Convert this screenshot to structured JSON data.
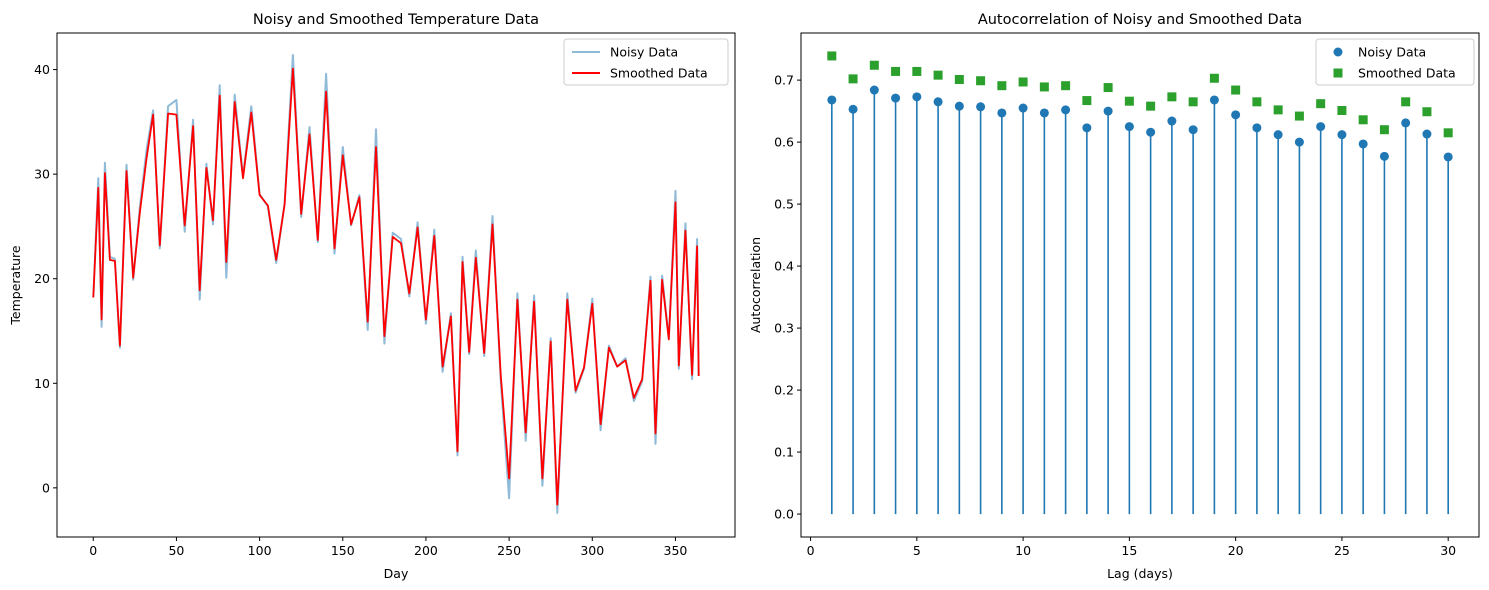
{
  "chart_data": [
    {
      "type": "line",
      "title": "Noisy and Smoothed Temperature Data",
      "xlabel": "Day",
      "ylabel": "Temperature",
      "xlim": [
        -21.8,
        385.8
      ],
      "ylim": [
        -4.7,
        43.5
      ],
      "xticks": [
        0,
        50,
        100,
        150,
        200,
        250,
        300,
        350
      ],
      "yticks": [
        0,
        10,
        20,
        30,
        40
      ],
      "legend_position": "upper right",
      "grid": false,
      "series": [
        {
          "name": "Noisy Data",
          "color": "#1f77b4",
          "alpha": 0.5,
          "x": [
            0,
            3,
            5,
            7,
            10,
            13,
            16,
            20,
            24,
            28,
            32,
            36,
            40,
            45,
            50,
            55,
            60,
            64,
            68,
            72,
            76,
            80,
            85,
            90,
            95,
            100,
            105,
            110,
            115,
            120,
            125,
            130,
            135,
            140,
            145,
            150,
            155,
            160,
            165,
            170,
            175,
            180,
            185,
            190,
            195,
            200,
            205,
            210,
            215,
            219,
            222,
            226,
            230,
            235,
            240,
            245,
            250,
            255,
            260,
            265,
            270,
            275,
            279,
            285,
            290,
            295,
            300,
            305,
            310,
            315,
            320,
            325,
            330,
            335,
            338,
            342,
            346,
            350,
            352,
            356,
            360,
            363,
            364
          ],
          "values": [
            18.2,
            29.6,
            15.4,
            31.1,
            22.1,
            21.9,
            13.4,
            30.9,
            19.9,
            26.8,
            32.3,
            36.1,
            22.9,
            36.5,
            37.1,
            24.5,
            35.2,
            18.0,
            31.0,
            25.2,
            38.5,
            20.1,
            37.6,
            29.8,
            36.5,
            28.1,
            26.9,
            21.5,
            27.2,
            41.4,
            25.9,
            34.5,
            23.5,
            39.6,
            22.4,
            32.6,
            25.1,
            28.0,
            15.1,
            34.3,
            13.8,
            24.4,
            23.8,
            18.3,
            25.4,
            15.7,
            24.7,
            11.1,
            16.7,
            3.1,
            22.1,
            12.8,
            22.7,
            12.6,
            26.0,
            10.1,
            -1.0,
            18.6,
            4.5,
            18.4,
            0.2,
            14.3,
            -2.4,
            18.6,
            9.1,
            11.4,
            18.1,
            5.5,
            13.6,
            11.6,
            12.4,
            8.3,
            10.2,
            20.2,
            4.2,
            20.3,
            14.3,
            28.4,
            11.4,
            25.3,
            10.4,
            23.8,
            10.7
          ]
        },
        {
          "name": "Smoothed Data",
          "color": "#ff0000",
          "x": [
            0,
            3,
            5,
            7,
            10,
            13,
            16,
            20,
            24,
            28,
            32,
            36,
            40,
            45,
            50,
            55,
            60,
            64,
            68,
            72,
            76,
            80,
            85,
            90,
            95,
            100,
            105,
            110,
            115,
            120,
            125,
            130,
            135,
            140,
            145,
            150,
            155,
            160,
            165,
            170,
            175,
            180,
            185,
            190,
            195,
            200,
            205,
            210,
            215,
            219,
            222,
            226,
            230,
            235,
            240,
            245,
            250,
            255,
            260,
            265,
            270,
            275,
            279,
            285,
            290,
            295,
            300,
            305,
            310,
            315,
            320,
            325,
            330,
            335,
            338,
            342,
            346,
            350,
            352,
            356,
            360,
            363,
            364
          ],
          "values": [
            18.2,
            28.7,
            16.1,
            30.1,
            21.8,
            21.7,
            13.6,
            30.3,
            20.1,
            26.3,
            31.5,
            35.7,
            23.2,
            35.8,
            35.7,
            25.1,
            34.6,
            18.9,
            30.6,
            25.6,
            37.5,
            21.6,
            36.9,
            29.6,
            35.9,
            28.0,
            27.0,
            21.8,
            27.1,
            40.1,
            26.2,
            33.8,
            23.7,
            37.9,
            22.9,
            31.8,
            25.2,
            27.8,
            15.9,
            32.6,
            14.5,
            24.0,
            23.4,
            18.6,
            24.9,
            16.1,
            24.1,
            11.6,
            16.4,
            3.5,
            21.6,
            13.0,
            22.0,
            12.9,
            25.2,
            10.7,
            0.9,
            18.0,
            5.3,
            17.8,
            0.9,
            14.0,
            -1.6,
            18.0,
            9.3,
            11.5,
            17.6,
            6.1,
            13.4,
            11.6,
            12.2,
            8.6,
            10.4,
            19.8,
            5.2,
            19.9,
            14.2,
            27.3,
            11.7,
            24.6,
            10.8,
            23.1,
            10.7
          ]
        }
      ]
    },
    {
      "type": "stem",
      "title": "Autocorrelation of Noisy and Smoothed Data",
      "xlabel": "Lag (days)",
      "ylabel": "Autocorrelation",
      "xlim": [
        -0.45,
        31.45
      ],
      "ylim": [
        -0.037,
        0.776
      ],
      "xticks": [
        0,
        5,
        10,
        15,
        20,
        25,
        30
      ],
      "yticks": [
        0.0,
        0.1,
        0.2,
        0.3,
        0.4,
        0.5,
        0.6,
        0.7
      ],
      "legend_position": "upper right",
      "grid": false,
      "x": [
        1,
        2,
        3,
        4,
        5,
        6,
        7,
        8,
        9,
        10,
        11,
        12,
        13,
        14,
        15,
        16,
        17,
        18,
        19,
        20,
        21,
        22,
        23,
        24,
        25,
        26,
        27,
        28,
        29,
        30
      ],
      "series": [
        {
          "name": "Noisy Data",
          "marker": "circle",
          "color": "#1f77b4",
          "values": [
            0.668,
            0.653,
            0.684,
            0.671,
            0.673,
            0.665,
            0.658,
            0.657,
            0.647,
            0.655,
            0.647,
            0.652,
            0.623,
            0.65,
            0.625,
            0.616,
            0.634,
            0.62,
            0.668,
            0.644,
            0.623,
            0.612,
            0.6,
            0.625,
            0.612,
            0.597,
            0.577,
            0.631,
            0.613,
            0.576
          ]
        },
        {
          "name": "Smoothed Data",
          "marker": "square",
          "color": "#2ca02c",
          "values": [
            0.739,
            0.702,
            0.724,
            0.714,
            0.714,
            0.708,
            0.701,
            0.699,
            0.691,
            0.697,
            0.689,
            0.691,
            0.667,
            0.688,
            0.666,
            0.658,
            0.673,
            0.665,
            0.703,
            0.684,
            0.665,
            0.652,
            0.642,
            0.662,
            0.651,
            0.636,
            0.62,
            0.665,
            0.649,
            0.615
          ]
        }
      ]
    }
  ]
}
